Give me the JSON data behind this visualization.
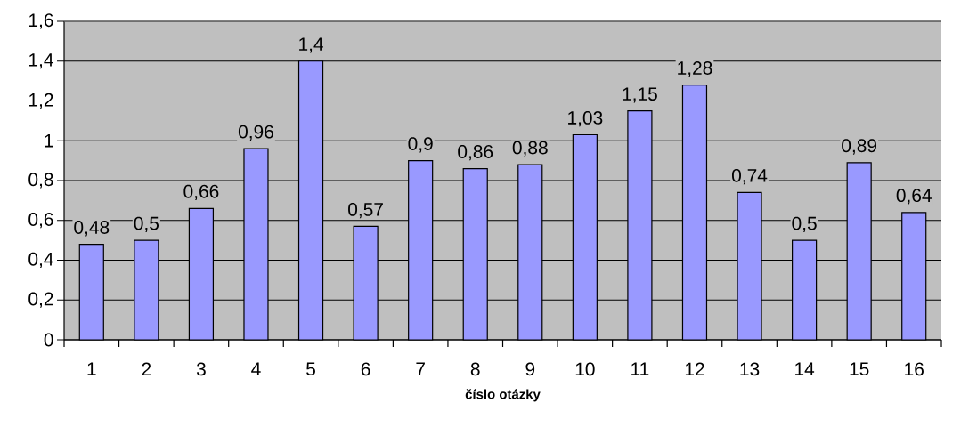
{
  "chart_data": {
    "type": "bar",
    "xlabel": "**číslo otázky**",
    "categories": [
      "1",
      "2",
      "3",
      "4",
      "5",
      "6",
      "7",
      "8",
      "9",
      "10",
      "11",
      "12",
      "13",
      "14",
      "15",
      "16"
    ],
    "values": [
      0.48,
      0.5,
      0.66,
      0.96,
      1.4,
      0.57,
      0.9,
      0.86,
      0.88,
      1.03,
      1.15,
      1.28,
      0.74,
      0.5,
      0.89,
      0.64
    ],
    "value_labels": [
      "0,48",
      "0,5",
      "0,66",
      "0,96",
      "1,4",
      "0,57",
      "0,9",
      "0,86",
      "0,88",
      "1,03",
      "1,15",
      "1,28",
      "0,74",
      "0,5",
      "0,89",
      "0,64"
    ],
    "color": "#9999ff",
    "ylim": [
      0,
      1.6
    ],
    "yticks": [
      0,
      {
        "value": 0.2,
        "label": "0,2"
      },
      {
        "value": 0.4,
        "label": "0,4"
      },
      {
        "value": 0.6,
        "label": "0,6"
      },
      {
        "value": 0.8,
        "label": "0,8"
      },
      1,
      {
        "value": 1.2,
        "label": "1,2"
      },
      {
        "value": 1.4,
        "label": "1,4"
      },
      {
        "value": 1.6,
        "label": "1,6"
      }
    ],
    "grid": "y"
  }
}
